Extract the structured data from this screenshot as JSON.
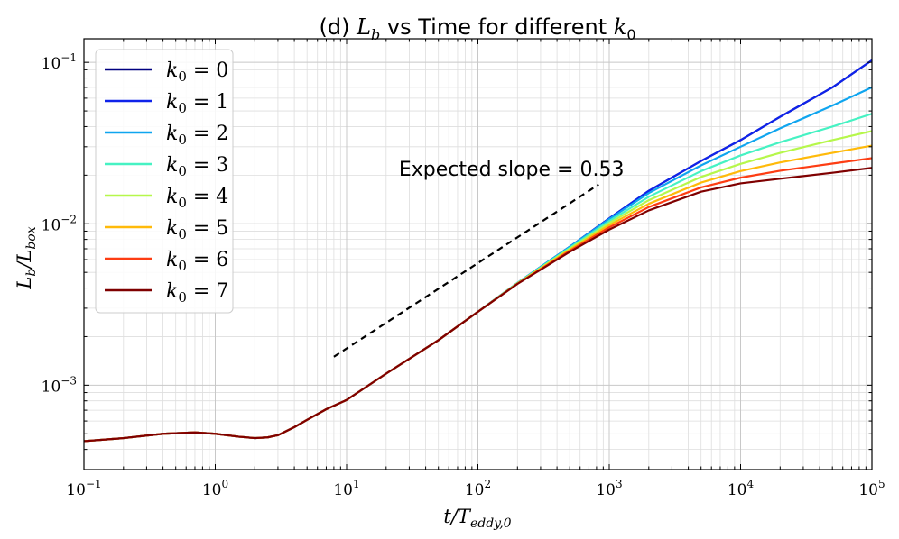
{
  "chart_data": {
    "type": "line",
    "title_prefix": "(d) ",
    "title_var": "L",
    "title_var_sub": "b",
    "title_mid": " vs Time for different ",
    "title_k": "k",
    "title_k_sub": "0",
    "xlabel_main": "t/T",
    "xlabel_sub": "eddy,0",
    "ylabel_main": "L",
    "ylabel_sub1": "b",
    "ylabel_mid": "/L",
    "ylabel_sub2": "box",
    "xscale": "log",
    "yscale": "log",
    "xlim": [
      0.1,
      100000
    ],
    "ylim": [
      0.0003,
      0.14
    ],
    "grid": true,
    "legend_position": "top-left",
    "xticks": [
      {
        "base": "10",
        "exp": "−1",
        "value": 0.1
      },
      {
        "base": "10",
        "exp": "0",
        "value": 1
      },
      {
        "base": "10",
        "exp": "1",
        "value": 10
      },
      {
        "base": "10",
        "exp": "2",
        "value": 100
      },
      {
        "base": "10",
        "exp": "3",
        "value": 1000
      },
      {
        "base": "10",
        "exp": "4",
        "value": 10000
      },
      {
        "base": "10",
        "exp": "5",
        "value": 100000
      }
    ],
    "yticks": [
      {
        "base": "10",
        "exp": "−3",
        "value": 0.001
      },
      {
        "base": "10",
        "exp": "−2",
        "value": 0.01
      },
      {
        "base": "10",
        "exp": "−1",
        "value": 0.1
      }
    ],
    "annotation": {
      "text": "Expected slope = 0.53",
      "line_x": [
        8,
        830
      ],
      "line_y": [
        0.0015,
        0.0175
      ],
      "text_x": 25,
      "text_y": 0.022
    },
    "common_curve": [
      [
        0.1,
        0.00045
      ],
      [
        0.2,
        0.00047
      ],
      [
        0.4,
        0.0005
      ],
      [
        0.7,
        0.00051
      ],
      [
        1.0,
        0.0005
      ],
      [
        1.5,
        0.00048
      ],
      [
        2.0,
        0.00047
      ],
      [
        2.5,
        0.000475
      ],
      [
        3.0,
        0.00049
      ],
      [
        4.0,
        0.00055
      ],
      [
        5.0,
        0.00061
      ],
      [
        7.0,
        0.00071
      ],
      [
        10,
        0.00081
      ],
      [
        20,
        0.00118
      ],
      [
        50,
        0.0019
      ],
      [
        100,
        0.00285
      ],
      [
        200,
        0.00425
      ]
    ],
    "series": [
      {
        "name": "k",
        "eq": " = 0",
        "color": "#000080",
        "points": [
          [
            200,
            0.0043
          ],
          [
            500,
            0.0072
          ],
          [
            1000,
            0.0108
          ],
          [
            2000,
            0.016
          ],
          [
            5000,
            0.0245
          ],
          [
            10000,
            0.033
          ],
          [
            20000,
            0.046
          ],
          [
            50000,
            0.07
          ],
          [
            100000,
            0.103
          ]
        ]
      },
      {
        "name": "k",
        "eq": " = 1",
        "color": "#0f23ea",
        "points": [
          [
            200,
            0.0043
          ],
          [
            500,
            0.0072
          ],
          [
            1000,
            0.0108
          ],
          [
            2000,
            0.016
          ],
          [
            5000,
            0.0245
          ],
          [
            10000,
            0.033
          ],
          [
            20000,
            0.046
          ],
          [
            50000,
            0.07
          ],
          [
            100000,
            0.103
          ]
        ]
      },
      {
        "name": "k",
        "eq": " = 2",
        "color": "#0fa5ef",
        "points": [
          [
            200,
            0.0043
          ],
          [
            500,
            0.0072
          ],
          [
            1000,
            0.0107
          ],
          [
            2000,
            0.0155
          ],
          [
            5000,
            0.023
          ],
          [
            10000,
            0.03
          ],
          [
            20000,
            0.039
          ],
          [
            50000,
            0.054
          ],
          [
            100000,
            0.07
          ]
        ]
      },
      {
        "name": "k",
        "eq": " = 3",
        "color": "#46f2c3",
        "points": [
          [
            200,
            0.0043
          ],
          [
            500,
            0.0071
          ],
          [
            1000,
            0.0104
          ],
          [
            2000,
            0.0147
          ],
          [
            5000,
            0.0212
          ],
          [
            10000,
            0.0265
          ],
          [
            20000,
            0.032
          ],
          [
            50000,
            0.04
          ],
          [
            100000,
            0.048
          ]
        ]
      },
      {
        "name": "k",
        "eq": " = 4",
        "color": "#b6f74b",
        "points": [
          [
            200,
            0.00428
          ],
          [
            500,
            0.007
          ],
          [
            1000,
            0.0101
          ],
          [
            2000,
            0.014
          ],
          [
            5000,
            0.0195
          ],
          [
            10000,
            0.0235
          ],
          [
            20000,
            0.0275
          ],
          [
            50000,
            0.033
          ],
          [
            100000,
            0.0375
          ]
        ]
      },
      {
        "name": "k",
        "eq": " = 5",
        "color": "#ffba0a",
        "points": [
          [
            200,
            0.00426
          ],
          [
            500,
            0.0069
          ],
          [
            1000,
            0.0098
          ],
          [
            2000,
            0.0133
          ],
          [
            5000,
            0.018
          ],
          [
            10000,
            0.0212
          ],
          [
            20000,
            0.024
          ],
          [
            50000,
            0.0275
          ],
          [
            100000,
            0.0305
          ]
        ]
      },
      {
        "name": "k",
        "eq": " = 6",
        "color": "#fd3d13",
        "points": [
          [
            200,
            0.00425
          ],
          [
            500,
            0.0068
          ],
          [
            1000,
            0.0095
          ],
          [
            2000,
            0.0127
          ],
          [
            5000,
            0.0168
          ],
          [
            10000,
            0.0193
          ],
          [
            20000,
            0.0213
          ],
          [
            50000,
            0.0236
          ],
          [
            100000,
            0.0255
          ]
        ]
      },
      {
        "name": "k",
        "eq": " = 7",
        "color": "#7f0000",
        "points": [
          [
            200,
            0.00424
          ],
          [
            500,
            0.0067
          ],
          [
            1000,
            0.0092
          ],
          [
            2000,
            0.0121
          ],
          [
            5000,
            0.0158
          ],
          [
            10000,
            0.0178
          ],
          [
            20000,
            0.019
          ],
          [
            50000,
            0.0207
          ],
          [
            100000,
            0.0222
          ]
        ]
      }
    ]
  }
}
